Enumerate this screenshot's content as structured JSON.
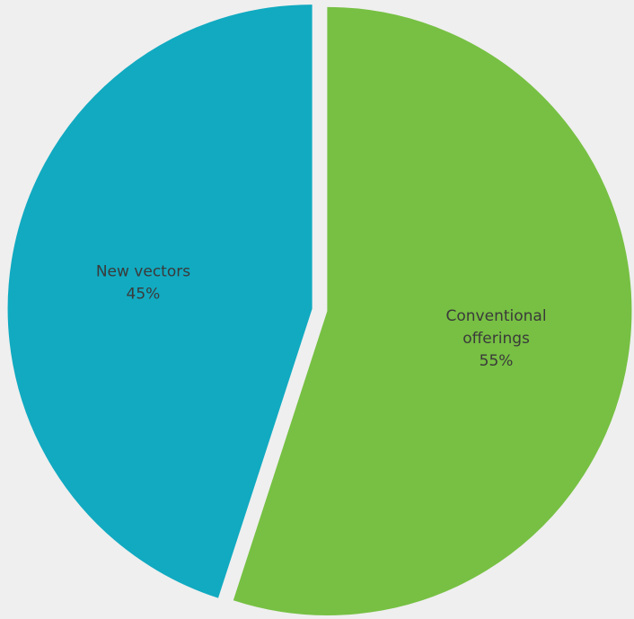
{
  "chart_data": {
    "type": "pie",
    "slices": [
      {
        "label_lines": [
          "Conventional",
          "offerings"
        ],
        "value": 55,
        "value_label": "55%",
        "color": "#77c043",
        "exploded": true
      },
      {
        "label_lines": [
          "New vectors"
        ],
        "value": 45,
        "value_label": "45%",
        "color": "#11aac1",
        "exploded": true
      }
    ],
    "start_angle": "12 o'clock",
    "direction": "clockwise",
    "background": "#efefef",
    "legend": "none"
  }
}
